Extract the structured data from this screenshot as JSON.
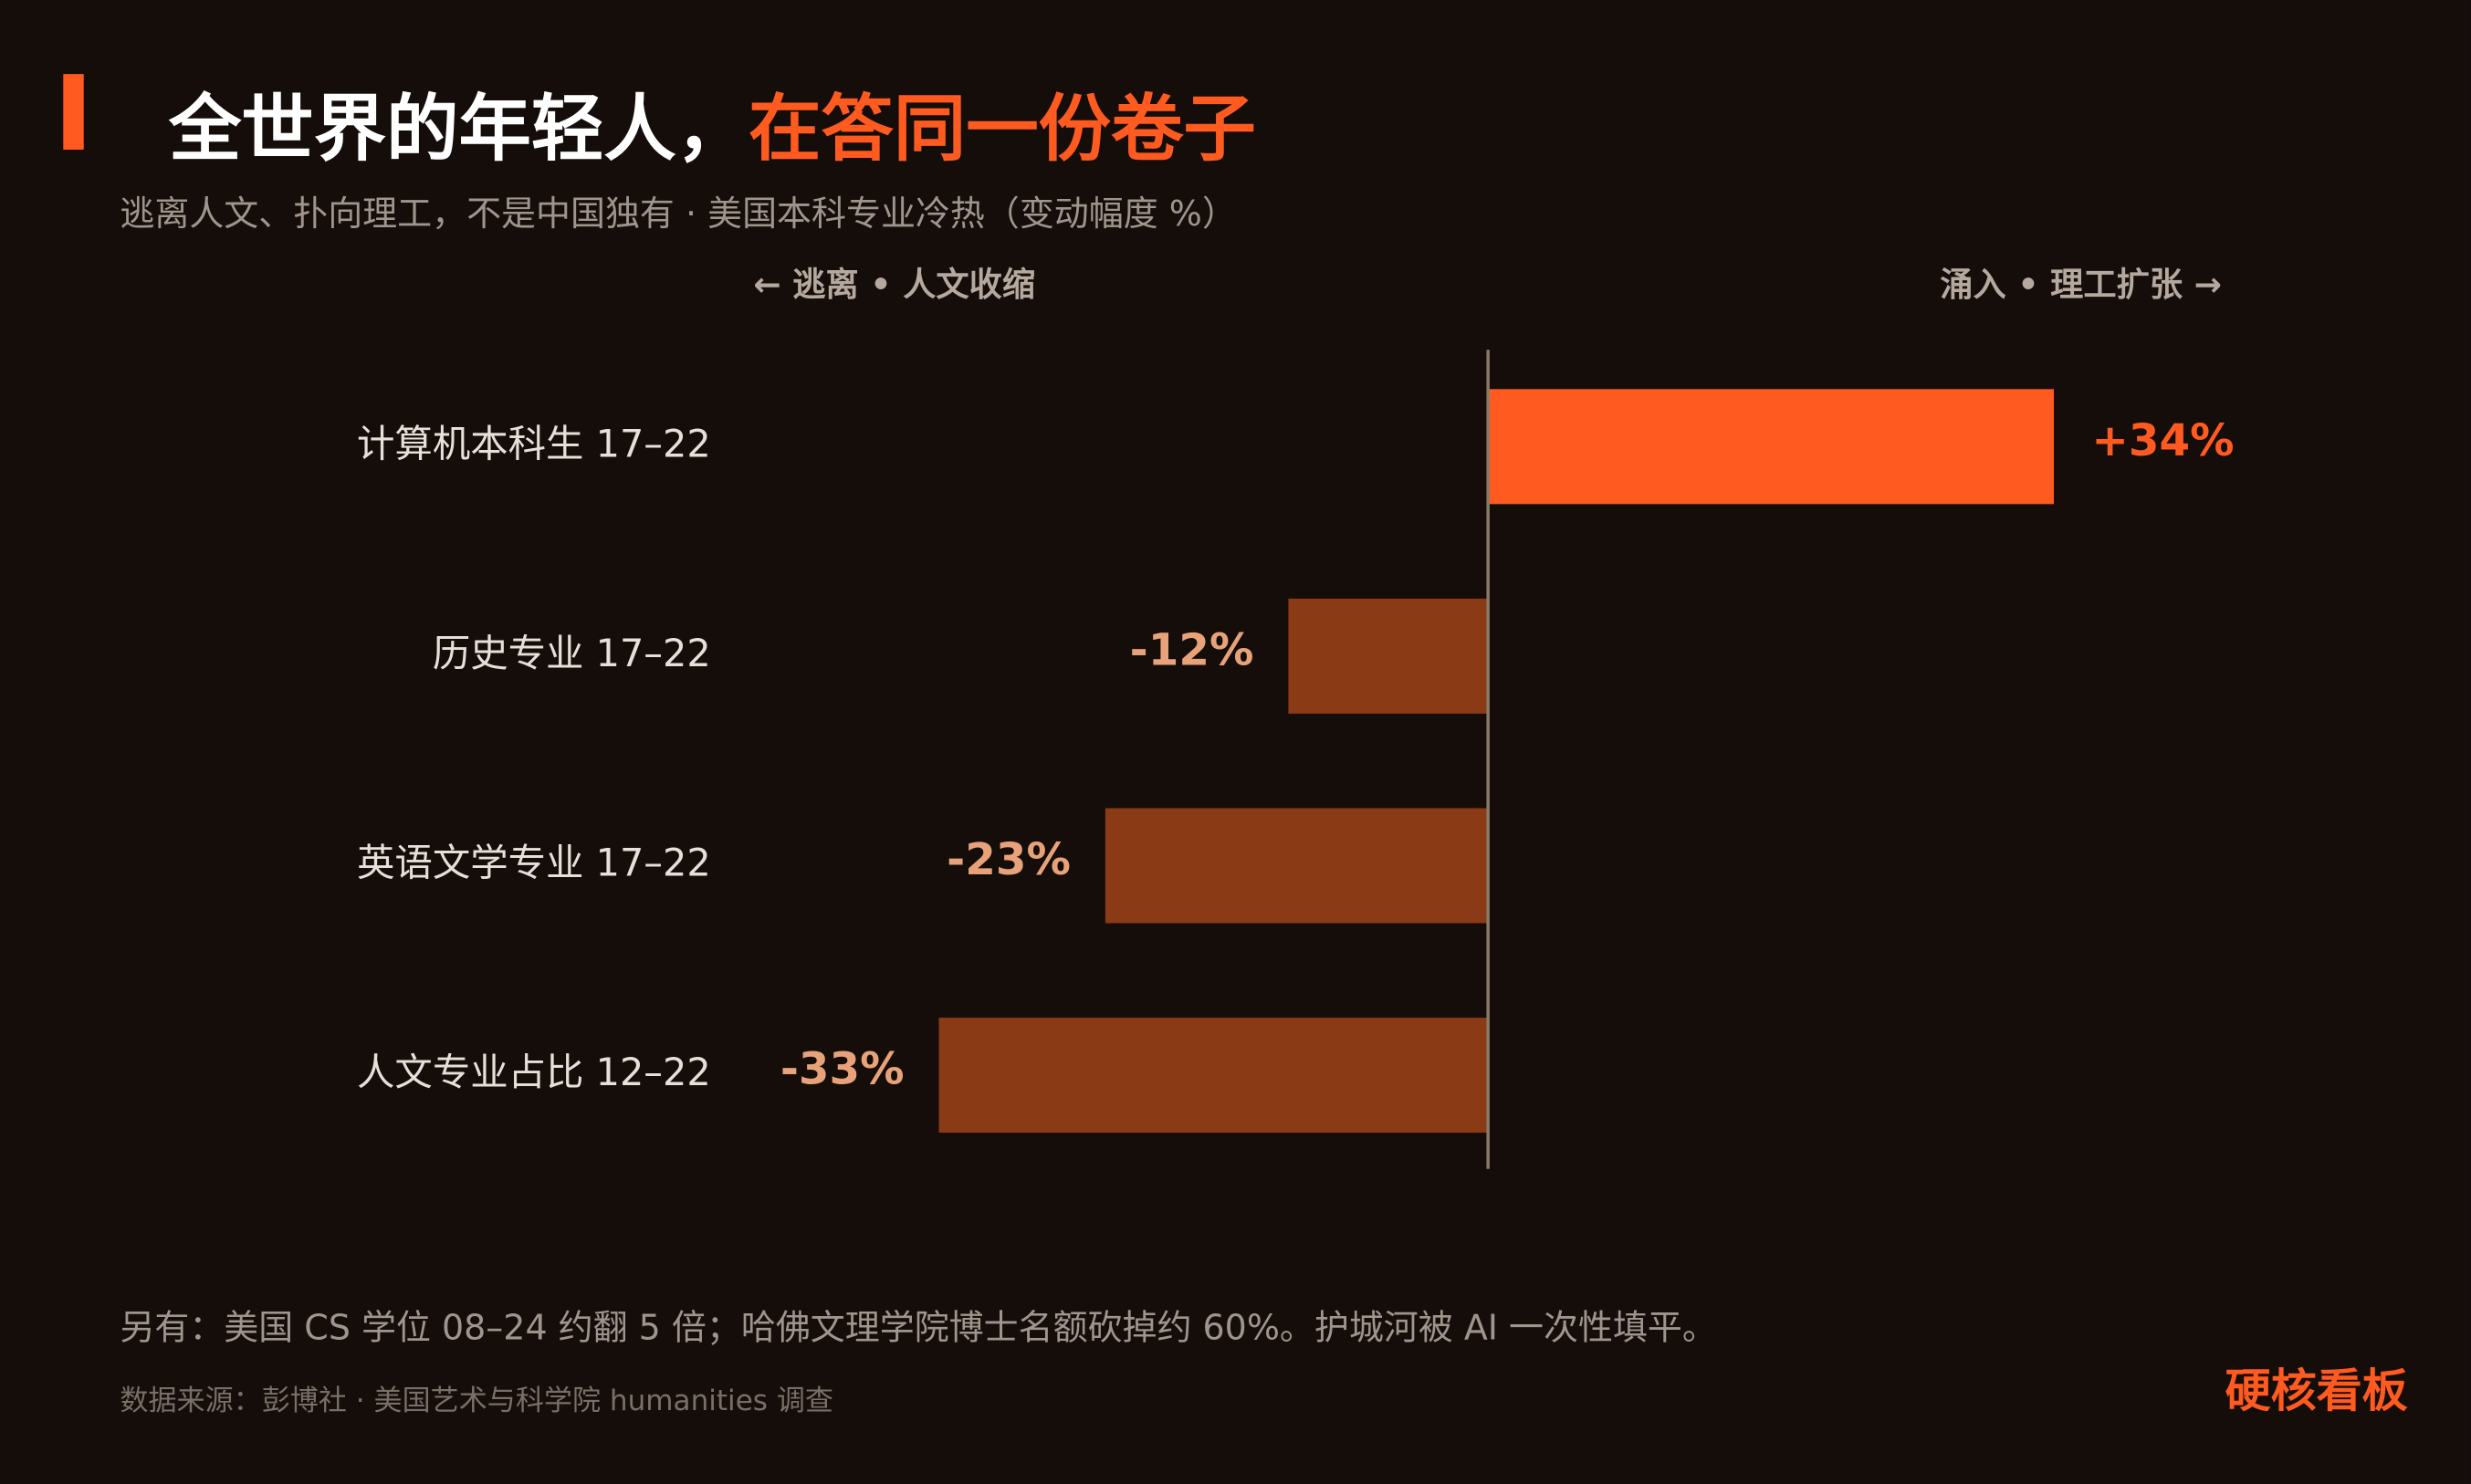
{
  "chart_data": {
    "type": "bar",
    "orientation": "horizontal",
    "title": "全世界的年轻人，",
    "title_highlight": "在答同一份卷子",
    "subtitle": "逃离人文、扑向理工，不是中国独有 · 美国本科专业冷热（变动幅度 %）",
    "left_label": "← 逃离 • 人文收缩",
    "right_label": "涌入 • 理工扩张 →",
    "categories": [
      "计算机本科生 17–22",
      "历史专业 17–22",
      "英语文学专业 17–22",
      "人文专业占比 12–22"
    ],
    "values": [
      34,
      -12,
      -23,
      -33
    ],
    "value_labels": [
      "+34%",
      "-12%",
      "-23%",
      "-33%"
    ],
    "positive_color": "#ff5a1f",
    "negative_color": "#8a3a14",
    "positive_label_color": "#ff5a1f",
    "negative_label_color": "#e8a27a",
    "xlim": [
      -45,
      44
    ],
    "note": "另有：美国 CS 学位 08–24 约翻 5 倍；哈佛文理学院博士名额砍掉约 60%。护城河被 AI 一次性填平。",
    "source": "数据来源：彭博社 · 美国艺术与科学院 humanities 调查",
    "brand": "硬核看板"
  }
}
